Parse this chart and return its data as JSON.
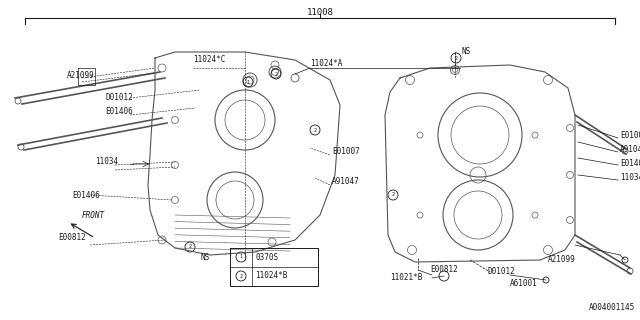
{
  "bg_color": "#ffffff",
  "line_color": "#1a1a1a",
  "part_color": "#555555",
  "title": "11008",
  "watermark": "A004001145",
  "legend_1_num": "1",
  "legend_1_text": "0370S",
  "legend_2_num": "2",
  "legend_2_text": "11024*B",
  "figsize": [
    6.4,
    3.2
  ],
  "dpi": 100
}
